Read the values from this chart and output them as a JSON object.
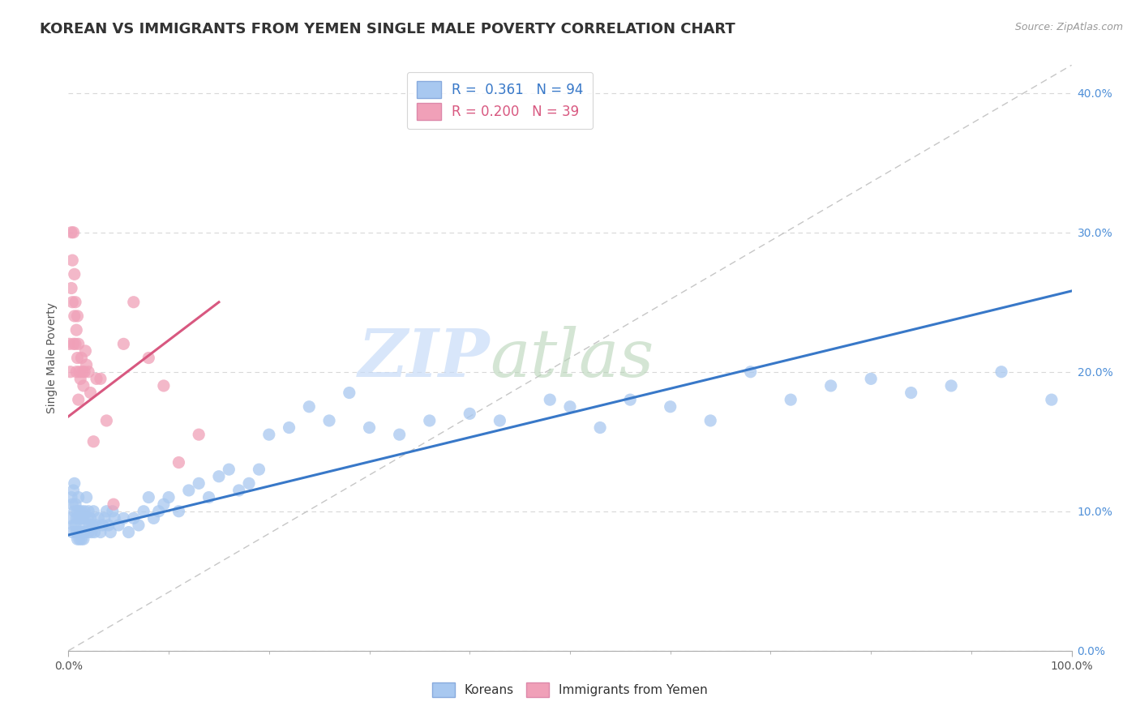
{
  "title": "KOREAN VS IMMIGRANTS FROM YEMEN SINGLE MALE POVERTY CORRELATION CHART",
  "source": "Source: ZipAtlas.com",
  "ylabel": "Single Male Poverty",
  "legend_labels": [
    "Koreans",
    "Immigrants from Yemen"
  ],
  "R_korean": 0.361,
  "N_korean": 94,
  "R_yemen": 0.2,
  "N_yemen": 39,
  "blue_color": "#A8C8F0",
  "pink_color": "#F0A0B8",
  "blue_line_color": "#3878C8",
  "pink_line_color": "#D85880",
  "dashed_line_color": "#C0C0C0",
  "right_tick_color": "#5090D8",
  "title_fontsize": 13,
  "label_fontsize": 10,
  "tick_fontsize": 10,
  "watermark_zip_color": "#C8DCF8",
  "watermark_atlas_color": "#C8DCC8",
  "xlim": [
    0.0,
    1.0
  ],
  "ylim": [
    0.0,
    0.42
  ],
  "yticks": [
    0.0,
    0.1,
    0.2,
    0.3,
    0.4
  ],
  "ytick_labels": [
    "0.0%",
    "10.0%",
    "20.0%",
    "30.0%",
    "40.0%"
  ],
  "blue_line_x": [
    0.0,
    1.0
  ],
  "blue_line_y": [
    0.083,
    0.258
  ],
  "pink_line_x": [
    0.0,
    0.15
  ],
  "pink_line_y": [
    0.168,
    0.25
  ],
  "diag_line_x": [
    0.0,
    1.0
  ],
  "diag_line_y": [
    0.0,
    0.42
  ],
  "korean_x": [
    0.002,
    0.003,
    0.004,
    0.004,
    0.005,
    0.005,
    0.006,
    0.006,
    0.007,
    0.007,
    0.008,
    0.008,
    0.009,
    0.009,
    0.01,
    0.01,
    0.01,
    0.011,
    0.011,
    0.012,
    0.012,
    0.013,
    0.013,
    0.014,
    0.014,
    0.015,
    0.015,
    0.016,
    0.016,
    0.017,
    0.018,
    0.019,
    0.02,
    0.02,
    0.021,
    0.022,
    0.023,
    0.024,
    0.025,
    0.026,
    0.028,
    0.03,
    0.032,
    0.034,
    0.036,
    0.038,
    0.04,
    0.042,
    0.044,
    0.046,
    0.05,
    0.055,
    0.06,
    0.065,
    0.07,
    0.075,
    0.08,
    0.085,
    0.09,
    0.095,
    0.1,
    0.11,
    0.12,
    0.13,
    0.14,
    0.15,
    0.16,
    0.17,
    0.18,
    0.19,
    0.2,
    0.22,
    0.24,
    0.26,
    0.28,
    0.3,
    0.33,
    0.36,
    0.4,
    0.43,
    0.48,
    0.5,
    0.53,
    0.56,
    0.6,
    0.64,
    0.68,
    0.72,
    0.76,
    0.8,
    0.84,
    0.88,
    0.93,
    0.98
  ],
  "korean_y": [
    0.095,
    0.11,
    0.085,
    0.105,
    0.09,
    0.115,
    0.1,
    0.12,
    0.09,
    0.105,
    0.085,
    0.095,
    0.08,
    0.1,
    0.085,
    0.095,
    0.11,
    0.08,
    0.1,
    0.085,
    0.095,
    0.08,
    0.1,
    0.085,
    0.095,
    0.08,
    0.095,
    0.085,
    0.1,
    0.09,
    0.11,
    0.095,
    0.085,
    0.1,
    0.09,
    0.095,
    0.085,
    0.09,
    0.1,
    0.085,
    0.09,
    0.095,
    0.085,
    0.09,
    0.095,
    0.1,
    0.09,
    0.085,
    0.1,
    0.095,
    0.09,
    0.095,
    0.085,
    0.095,
    0.09,
    0.1,
    0.11,
    0.095,
    0.1,
    0.105,
    0.11,
    0.1,
    0.115,
    0.12,
    0.11,
    0.125,
    0.13,
    0.115,
    0.12,
    0.13,
    0.155,
    0.16,
    0.175,
    0.165,
    0.185,
    0.16,
    0.155,
    0.165,
    0.17,
    0.165,
    0.18,
    0.175,
    0.16,
    0.18,
    0.175,
    0.165,
    0.2,
    0.18,
    0.19,
    0.195,
    0.185,
    0.19,
    0.2,
    0.18
  ],
  "yemen_x": [
    0.001,
    0.002,
    0.003,
    0.003,
    0.004,
    0.004,
    0.005,
    0.005,
    0.006,
    0.006,
    0.007,
    0.007,
    0.008,
    0.008,
    0.009,
    0.009,
    0.01,
    0.01,
    0.011,
    0.012,
    0.013,
    0.014,
    0.015,
    0.016,
    0.017,
    0.018,
    0.02,
    0.022,
    0.025,
    0.028,
    0.032,
    0.038,
    0.045,
    0.055,
    0.065,
    0.08,
    0.095,
    0.11,
    0.13
  ],
  "yemen_y": [
    0.22,
    0.2,
    0.26,
    0.3,
    0.25,
    0.28,
    0.22,
    0.3,
    0.24,
    0.27,
    0.22,
    0.25,
    0.2,
    0.23,
    0.21,
    0.24,
    0.18,
    0.22,
    0.2,
    0.195,
    0.21,
    0.2,
    0.19,
    0.2,
    0.215,
    0.205,
    0.2,
    0.185,
    0.15,
    0.195,
    0.195,
    0.165,
    0.105,
    0.22,
    0.25,
    0.21,
    0.19,
    0.135,
    0.155
  ]
}
